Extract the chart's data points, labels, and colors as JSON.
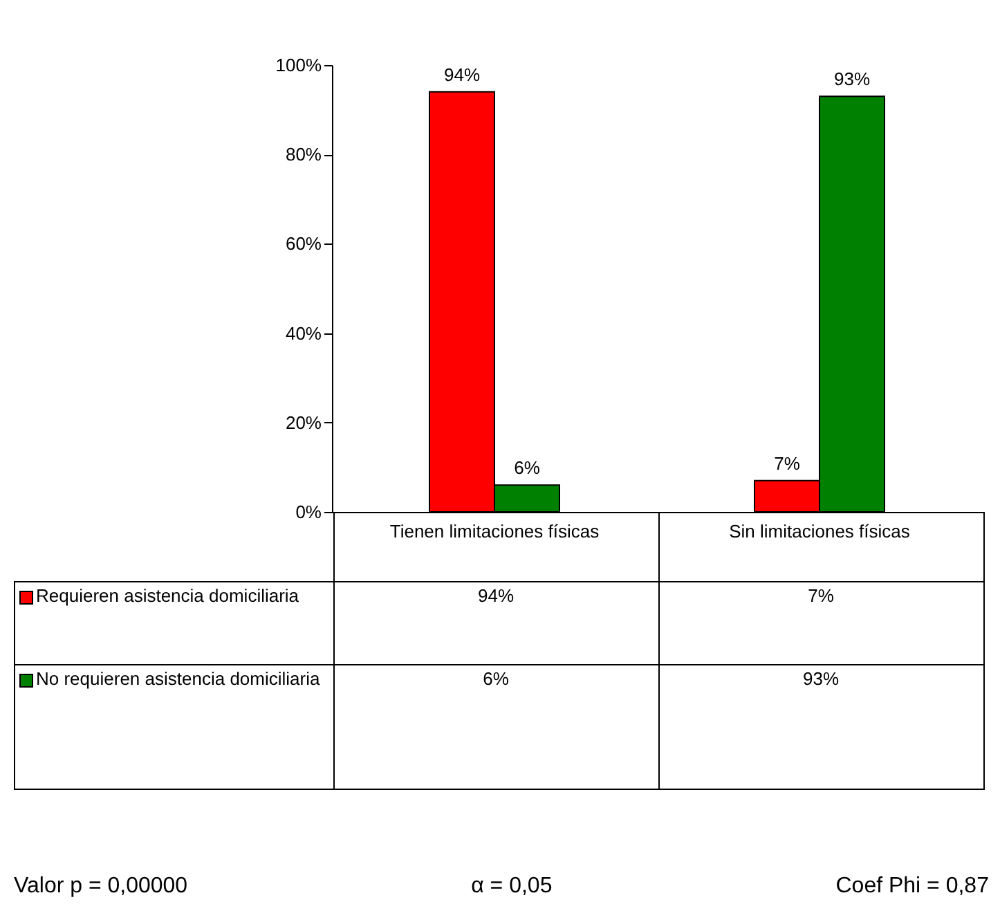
{
  "chart_data": {
    "type": "bar",
    "categories": [
      "Tienen limitaciones físicas",
      "Sin limitaciones físicas"
    ],
    "series": [
      {
        "name": "Requieren asistencia domiciliaria",
        "color": "#ff0000",
        "values": [
          94,
          7
        ],
        "value_labels": [
          "94%",
          "7%"
        ]
      },
      {
        "name": "No requieren asistencia domiciliaria",
        "color": "#008000",
        "values": [
          6,
          93
        ],
        "value_labels": [
          "6%",
          "93%"
        ]
      }
    ],
    "ylim": [
      0,
      100
    ],
    "yticks": [
      {
        "value": 0,
        "label": "0%"
      },
      {
        "value": 20,
        "label": "20%"
      },
      {
        "value": 40,
        "label": "40%"
      },
      {
        "value": 60,
        "label": "60%"
      },
      {
        "value": 80,
        "label": "80%"
      },
      {
        "value": 100,
        "label": "100%"
      }
    ],
    "grid": false,
    "legend": "bottom left",
    "annotations": [
      "Valor p = 0,00000",
      "α = 0,05",
      "Coef Phi = 0,87"
    ]
  }
}
